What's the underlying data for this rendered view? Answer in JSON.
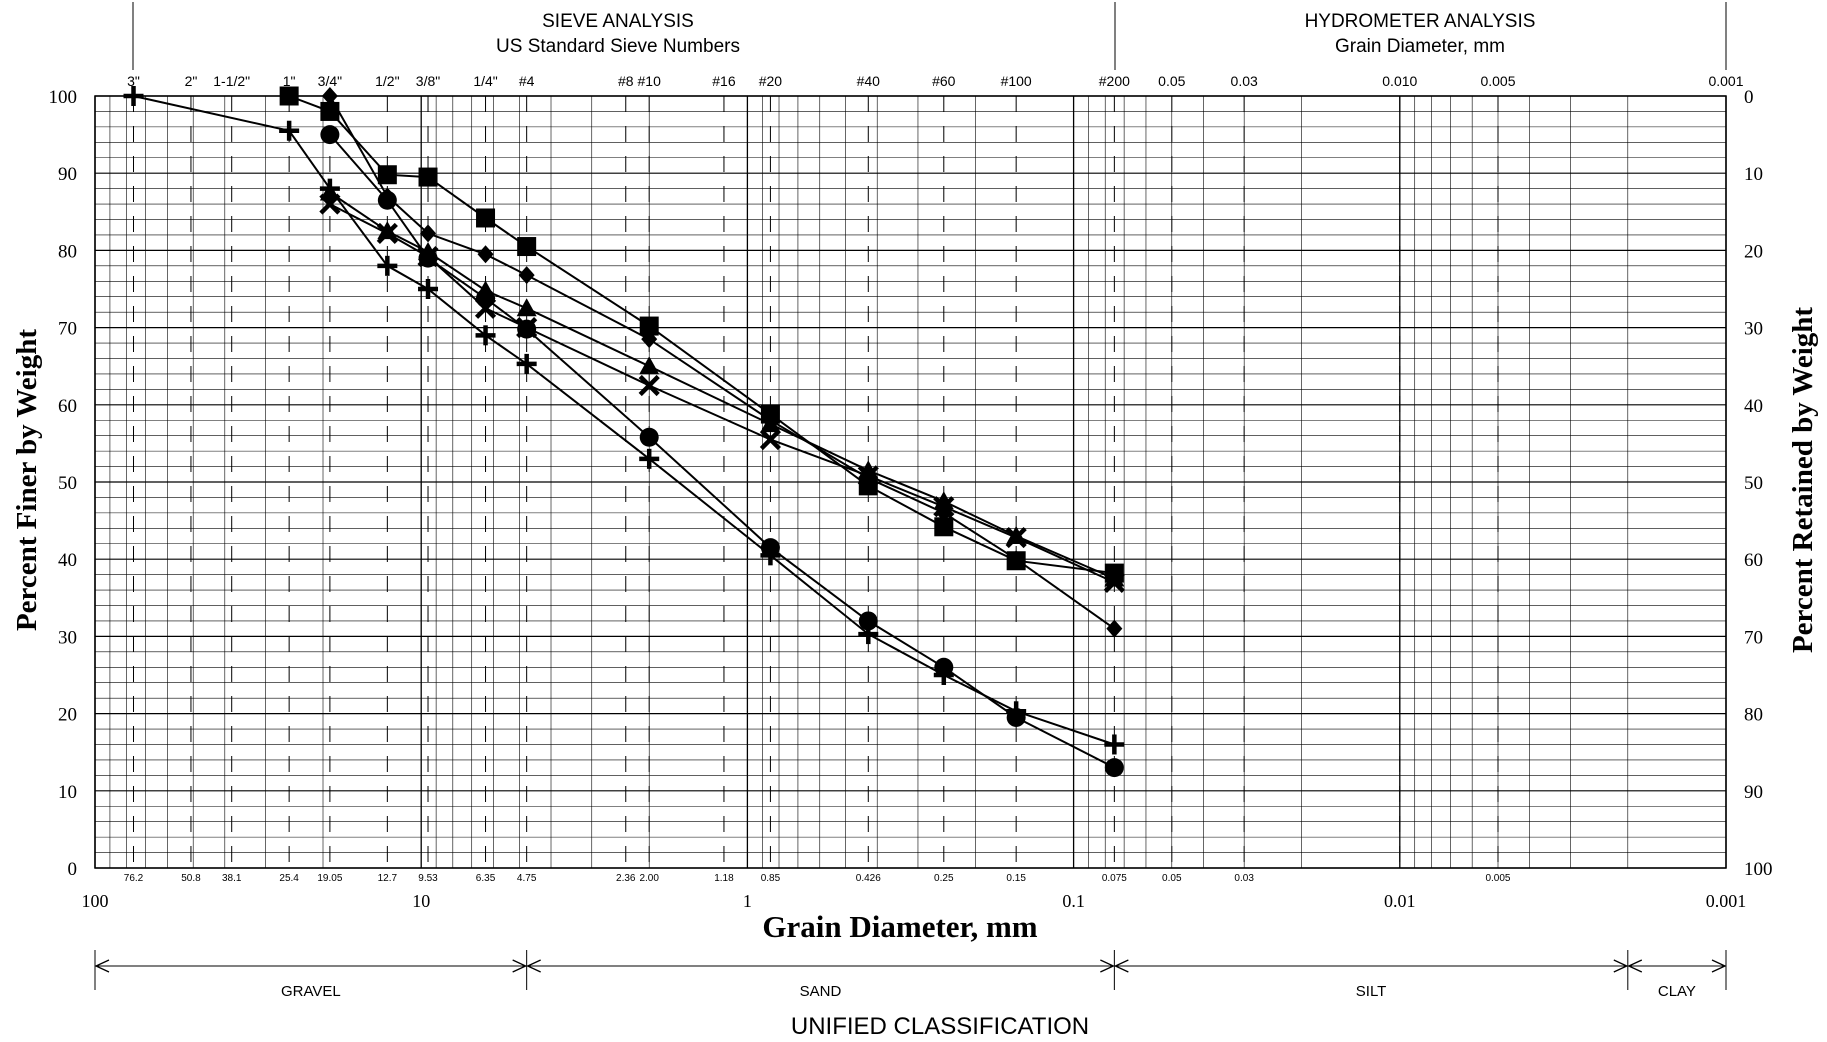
{
  "chart_data": {
    "type": "line",
    "x_scale": "log",
    "xlim": [
      100,
      0.001
    ],
    "ylim": [
      0,
      100
    ],
    "xlabel": "Grain Diameter, mm",
    "ylabel_left": "Percent Finer by Weight",
    "ylabel_right": "Percent Retained by Weight",
    "grid": true,
    "header": {
      "sieve_title": "SIEVE ANALYSIS",
      "sieve_subtitle": "US Standard Sieve Numbers",
      "hydrometer_title": "HYDROMETER ANALYSIS",
      "hydrometer_subtitle": "Grain Diameter, mm"
    },
    "top_ticks": [
      {
        "label": "3\"",
        "x": 76.2
      },
      {
        "label": "2\"",
        "x": 50.8
      },
      {
        "label": "1-1/2\"",
        "x": 38.1
      },
      {
        "label": "1\"",
        "x": 25.4
      },
      {
        "label": "3/4\"",
        "x": 19.05
      },
      {
        "label": "1/2\"",
        "x": 12.7
      },
      {
        "label": "3/8\"",
        "x": 9.53
      },
      {
        "label": "1/4\"",
        "x": 6.35
      },
      {
        "label": "#4",
        "x": 4.75
      },
      {
        "label": "#8",
        "x": 2.36
      },
      {
        "label": "#10",
        "x": 2.0
      },
      {
        "label": "#16",
        "x": 1.18
      },
      {
        "label": "#20",
        "x": 0.85
      },
      {
        "label": "#40",
        "x": 0.426
      },
      {
        "label": "#60",
        "x": 0.25
      },
      {
        "label": "#100",
        "x": 0.15
      },
      {
        "label": "#200",
        "x": 0.075
      },
      {
        "label": "0.05",
        "x": 0.05
      },
      {
        "label": "0.03",
        "x": 0.03
      },
      {
        "label": "0.010",
        "x": 0.01
      },
      {
        "label": "0.005",
        "x": 0.005
      },
      {
        "label": "0.001",
        "x": 0.001
      }
    ],
    "bottom_ticks": [
      {
        "label": "76.2",
        "x": 76.2
      },
      {
        "label": "50.8",
        "x": 50.8
      },
      {
        "label": "38.1",
        "x": 38.1
      },
      {
        "label": "25.4",
        "x": 25.4
      },
      {
        "label": "19.05",
        "x": 19.05
      },
      {
        "label": "12.7",
        "x": 12.7
      },
      {
        "label": "9.53",
        "x": 9.53
      },
      {
        "label": "6.35",
        "x": 6.35
      },
      {
        "label": "4.75",
        "x": 4.75
      },
      {
        "label": "2.36",
        "x": 2.36
      },
      {
        "label": "2.00",
        "x": 2.0
      },
      {
        "label": "1.18",
        "x": 1.18
      },
      {
        "label": "0.85",
        "x": 0.85
      },
      {
        "label": "0.426",
        "x": 0.426
      },
      {
        "label": "0.25",
        "x": 0.25
      },
      {
        "label": "0.15",
        "x": 0.15
      },
      {
        "label": "0.075",
        "x": 0.075
      },
      {
        "label": "0.05",
        "x": 0.05
      },
      {
        "label": "0.03",
        "x": 0.03
      },
      {
        "label": "0.005",
        "x": 0.005
      }
    ],
    "decade_labels": [
      {
        "label": "100",
        "x": 100
      },
      {
        "label": "10",
        "x": 10
      },
      {
        "label": "1",
        "x": 1
      },
      {
        "label": "0.1",
        "x": 0.1
      },
      {
        "label": "0.01",
        "x": 0.01
      },
      {
        "label": "0.001",
        "x": 0.001
      }
    ],
    "y_ticks_left": [
      "0",
      "10",
      "20",
      "30",
      "40",
      "50",
      "60",
      "70",
      "80",
      "90",
      "100"
    ],
    "y_ticks_right": [
      "100",
      "90",
      "80",
      "70",
      "60",
      "50",
      "40",
      "30",
      "20",
      "10",
      "0"
    ],
    "classification": {
      "title": "UNIFIED CLASSIFICATION",
      "zones": [
        {
          "label": "GRAVEL",
          "from": 100,
          "to": 4.75
        },
        {
          "label": "SAND",
          "from": 4.75,
          "to": 0.075
        },
        {
          "label": "SILT",
          "from": 0.075,
          "to": 0.002
        },
        {
          "label": "CLAY",
          "from": 0.002,
          "to": 0.001
        }
      ]
    },
    "series": [
      {
        "marker": "diamond",
        "points": [
          [
            19.05,
            100
          ],
          [
            12.7,
            87
          ],
          [
            9.53,
            82.2
          ],
          [
            6.35,
            79.5
          ],
          [
            4.75,
            76.8
          ],
          [
            2.0,
            68.5
          ],
          [
            0.85,
            58
          ],
          [
            0.426,
            50.5
          ],
          [
            0.25,
            46
          ],
          [
            0.15,
            40
          ],
          [
            0.075,
            31
          ]
        ]
      },
      {
        "marker": "square",
        "points": [
          [
            25.4,
            100
          ],
          [
            19.05,
            98
          ],
          [
            12.7,
            89.8
          ],
          [
            9.53,
            89.5
          ],
          [
            6.35,
            84.2
          ],
          [
            4.75,
            80.5
          ],
          [
            2.0,
            70.2
          ],
          [
            0.85,
            58.8
          ],
          [
            0.426,
            49.5
          ],
          [
            0.25,
            44.2
          ],
          [
            0.15,
            39.8
          ],
          [
            0.075,
            38.2
          ]
        ]
      },
      {
        "marker": "circle",
        "points": [
          [
            19.05,
            95
          ],
          [
            12.7,
            86.5
          ],
          [
            9.53,
            79
          ],
          [
            6.35,
            73.8
          ],
          [
            4.75,
            69.8
          ],
          [
            2.0,
            55.8
          ],
          [
            0.85,
            41.5
          ],
          [
            0.426,
            32
          ],
          [
            0.25,
            26
          ],
          [
            0.15,
            19.5
          ],
          [
            0.075,
            13
          ]
        ]
      },
      {
        "marker": "triangle",
        "points": [
          [
            19.05,
            87.5
          ],
          [
            12.7,
            82.5
          ],
          [
            9.53,
            79.8
          ],
          [
            6.35,
            74.8
          ],
          [
            4.75,
            72.5
          ],
          [
            2.0,
            65
          ],
          [
            0.85,
            57.5
          ],
          [
            0.426,
            51.5
          ],
          [
            0.25,
            47.5
          ],
          [
            0.15,
            43
          ],
          [
            0.075,
            37.5
          ]
        ]
      },
      {
        "marker": "x",
        "points": [
          [
            19.05,
            86
          ],
          [
            12.7,
            82.2
          ],
          [
            9.53,
            79.2
          ],
          [
            6.35,
            72.5
          ],
          [
            4.75,
            70
          ],
          [
            2.0,
            62.5
          ],
          [
            0.85,
            55.5
          ],
          [
            0.426,
            50.8
          ],
          [
            0.25,
            46.8
          ],
          [
            0.15,
            42.8
          ],
          [
            0.075,
            37
          ]
        ]
      },
      {
        "marker": "plus",
        "points": [
          [
            76.2,
            100
          ],
          [
            25.4,
            95.5
          ],
          [
            19.05,
            88
          ],
          [
            12.7,
            78
          ],
          [
            9.53,
            75
          ],
          [
            6.35,
            69
          ],
          [
            4.75,
            65.3
          ],
          [
            2.0,
            53
          ],
          [
            0.85,
            40.5
          ],
          [
            0.426,
            30.3
          ],
          [
            0.25,
            25
          ],
          [
            0.15,
            20.3
          ],
          [
            0.075,
            16
          ]
        ]
      }
    ]
  }
}
